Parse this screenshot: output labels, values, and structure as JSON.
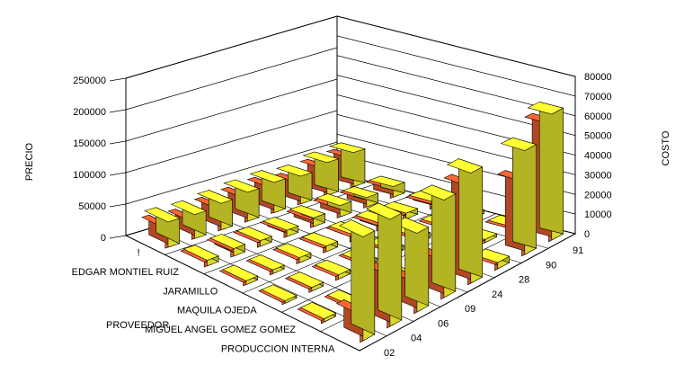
{
  "chart_data": {
    "type": "bar",
    "style": "3d-grouped-bar",
    "ylabel": "PRECIO",
    "y2label": "COSTO",
    "xlabel": "PROVEEDOR",
    "ylim": [
      0,
      250000
    ],
    "y2lim": [
      0,
      80000
    ],
    "yticks": [
      "0",
      "50000",
      "100000",
      "150000",
      "200000",
      "250000"
    ],
    "y2ticks": [
      "0",
      "10000",
      "20000",
      "30000",
      "40000",
      "50000",
      "60000",
      "70000",
      "80000"
    ],
    "proveedores": [
      "!",
      "EDGAR MONTIEL RUIZ",
      "JARAMILLO",
      "MAQUILA OJEDA",
      "MIGUEL ANGEL GOMEZ GOMEZ",
      "PRODUCCION INTERNA"
    ],
    "categories": [
      "02",
      "04",
      "06",
      "09",
      "24",
      "28",
      "90",
      "91"
    ],
    "series": [
      {
        "name": "PRECIO",
        "values": [
          [
            40000,
            38000,
            42000,
            46000,
            48000,
            44000,
            52000,
            54000
          ],
          [
            9000,
            12000,
            9000,
            10000,
            14000,
            18000,
            15000,
            17000
          ],
          [
            6000,
            6000,
            8000,
            9000,
            10000,
            11000,
            9000,
            10000
          ],
          [
            4000,
            6000,
            7000,
            6000,
            7000,
            8000,
            7000,
            6000
          ],
          [
            5000,
            5000,
            4000,
            6000,
            5000,
            4000,
            5000,
            4000
          ],
          [
            165000,
            170000,
            125000,
            155000,
            175000,
            10000,
            165000,
            200000
          ]
        ]
      },
      {
        "name": "COSTO",
        "values": [
          [
            10000,
            9000,
            11000,
            12000,
            13000,
            11000,
            14000,
            15000
          ],
          [
            2500,
            3500,
            2500,
            3000,
            4000,
            5000,
            4500,
            5000
          ],
          [
            1800,
            1800,
            2200,
            2500,
            2800,
            3000,
            2500,
            2800
          ],
          [
            1200,
            1800,
            2000,
            1800,
            2000,
            2200,
            2000,
            1800
          ],
          [
            1500,
            1500,
            1200,
            1800,
            1500,
            1200,
            1500,
            1200
          ],
          [
            14000,
            27000,
            16000,
            20000,
            50000,
            3000,
            38000,
            60000
          ]
        ]
      }
    ],
    "colors": {
      "PRECIO": "#ffff33",
      "COSTO": "#ff6633"
    }
  }
}
